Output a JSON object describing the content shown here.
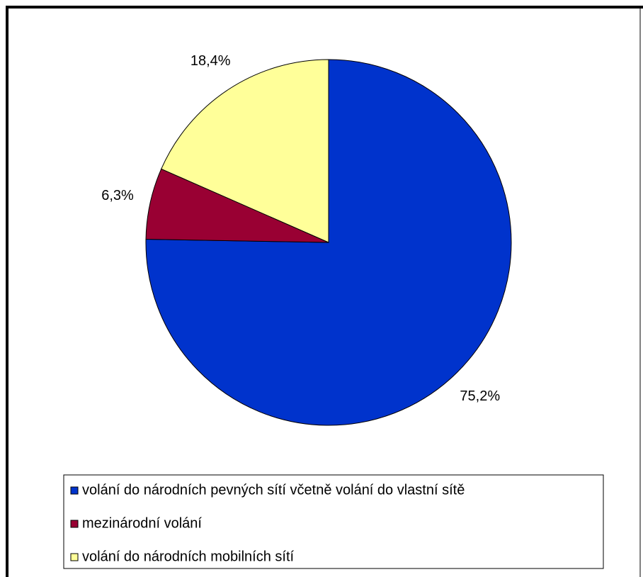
{
  "chart_data": {
    "type": "pie",
    "categories": [
      "volání do národních pevných sítí včetně volání do vlastní sítě",
      "mezinárodní volání",
      "volání do národních mobilních sítí"
    ],
    "values": [
      75.2,
      6.3,
      18.4
    ],
    "value_labels": [
      "75,2%",
      "6,3%",
      "18,4%"
    ],
    "colors": [
      "#0033cc",
      "#990033",
      "#ffff99"
    ],
    "legend": "bottom"
  }
}
